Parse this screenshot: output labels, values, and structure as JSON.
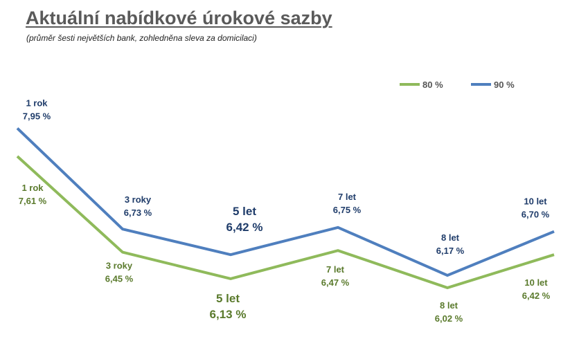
{
  "title": "Aktuální nabídkové úrokové sazby",
  "subtitle": "(průměr šesti největších bank, zohledněna sleva za domicilaci)",
  "colors": {
    "series_80": "#8fba5b",
    "series_90": "#4f7fbe",
    "label_80": "#5a7a2c",
    "label_90": "#1f3c6a"
  },
  "chart_data": {
    "type": "line",
    "title": "Aktuální nabídkové úrokové sazby",
    "subtitle": "(průměr šesti největších bank, zohledněna sleva za domicilaci)",
    "xlabel": "",
    "ylabel": "",
    "grid": false,
    "legend": "top-right",
    "ylim": [
      5.6,
      8.2
    ],
    "categories": [
      "1 rok",
      "3 roky",
      "5 let",
      "7 let",
      "8 let",
      "10 let"
    ],
    "series": [
      {
        "name": "80 %",
        "values": [
          7.61,
          6.45,
          6.13,
          6.47,
          6.02,
          6.42
        ],
        "labels": [
          "7,61 %",
          "6,45 %",
          "6,13 %",
          "6,47 %",
          "6,02 %",
          "6,42 %"
        ]
      },
      {
        "name": "90 %",
        "values": [
          7.95,
          6.73,
          6.42,
          6.75,
          6.17,
          6.7
        ],
        "labels": [
          "7,95 %",
          "6,73 %",
          "6,42 %",
          "6,75 %",
          "6,17 %",
          "6,70 %"
        ]
      }
    ]
  }
}
